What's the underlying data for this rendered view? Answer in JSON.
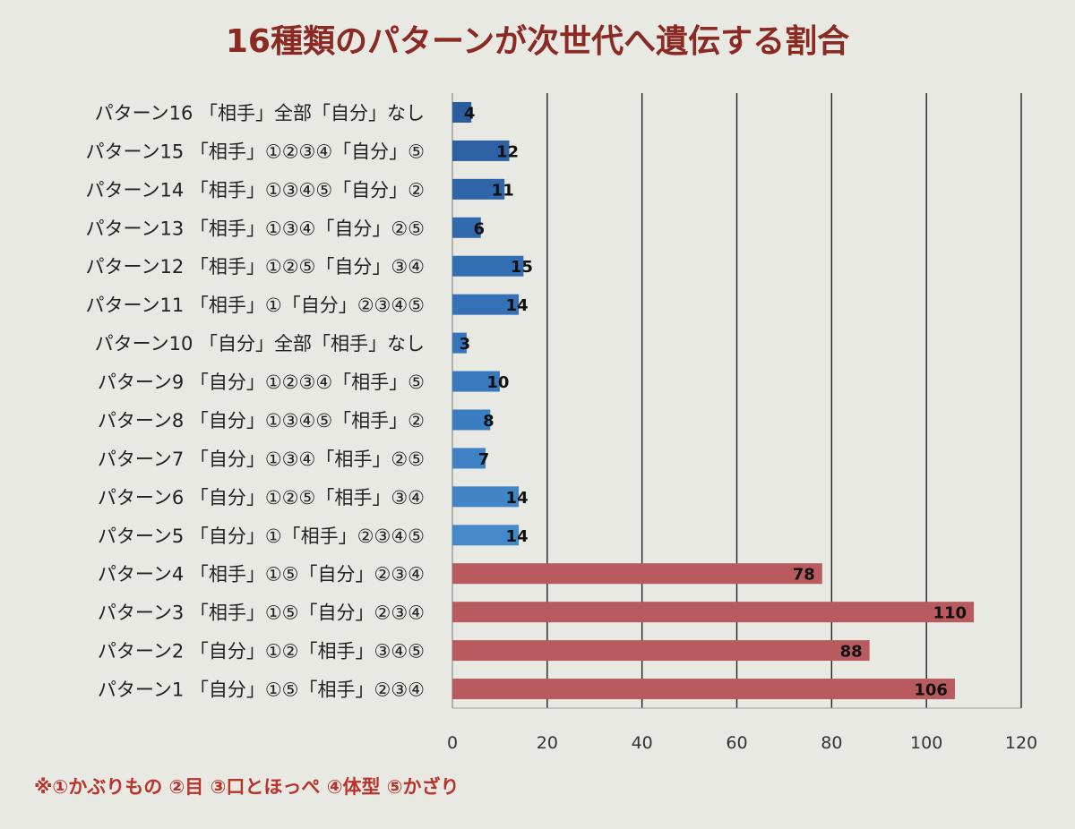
{
  "chart_data": {
    "type": "bar",
    "orientation": "horizontal",
    "title": "16種類のパターンが次世代へ遺伝する割合",
    "categories": [
      "パターン16 「相手」全部「自分」なし",
      "パターン15 「相手」①②③④「自分」⑤",
      "パターン14 「相手」①③④⑤「自分」②",
      "パターン13 「相手」①③④「自分」②⑤",
      "パターン12 「相手」①②⑤「自分」③④",
      "パターン11 「相手」①「自分」②③④⑤",
      "パターン10 「自分」全部「相手」なし",
      "パターン9 「自分」①②③④「相手」⑤",
      "パターン8 「自分」①③④⑤「相手」②",
      "パターン7 「自分」①③④「相手」②⑤",
      "パターン6 「自分」①②⑤「相手」③④",
      "パターン5 「自分」①「相手」②③④⑤",
      "パターン4 「相手」①⑤「自分」②③④",
      "パターン3 「相手」①⑤「自分」②③④",
      "パターン2 「自分」①②「相手」③④⑤",
      "パターン1 「自分」①⑤「相手」②③④"
    ],
    "values": [
      4,
      12,
      11,
      6,
      15,
      14,
      3,
      10,
      8,
      7,
      14,
      14,
      78,
      110,
      88,
      106
    ],
    "colors": [
      "#2b5d9e",
      "#2d61a3",
      "#2f66a8",
      "#3169ad",
      "#336db2",
      "#3571b6",
      "#3775ba",
      "#3979bd",
      "#3b7dc1",
      "#3e81c4",
      "#4185c7",
      "#4489ca",
      "#b85a5e",
      "#b85a5e",
      "#b85a5e",
      "#b85a5e"
    ],
    "xlim": [
      0,
      120
    ],
    "xticks": [
      0,
      20,
      40,
      60,
      80,
      100,
      120
    ],
    "grid": "vertical",
    "legend": "none",
    "footnote": "※①かぶりもの ②目 ③口とほっぺ ④体型 ⑤かざり"
  }
}
